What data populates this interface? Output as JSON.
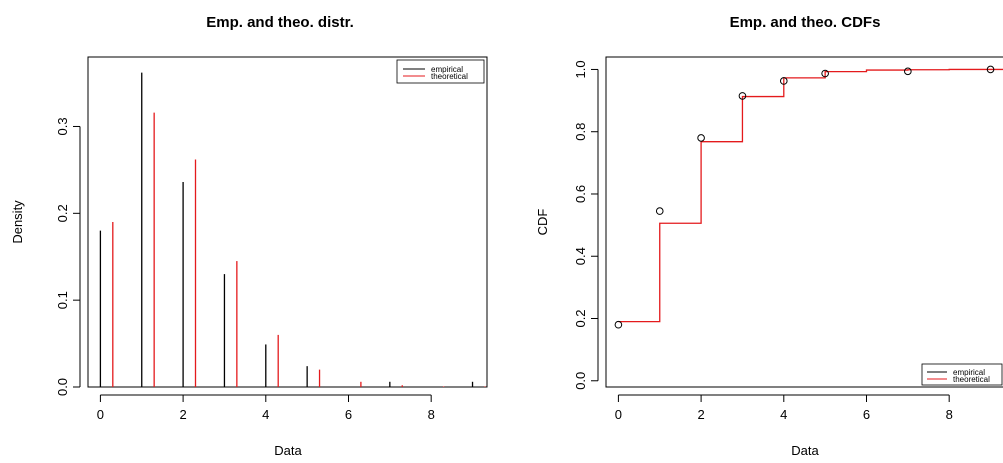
{
  "colors": {
    "empirical": "#000000",
    "theoretical": "#e41a1c"
  },
  "chart_data": [
    {
      "type": "bar",
      "title": "Emp. and theo. distr.",
      "xlabel": "Data",
      "ylabel": "Density",
      "xlim": [
        -0.3,
        9.35
      ],
      "ylim": [
        0,
        0.38
      ],
      "xticks": [
        0,
        2,
        4,
        6,
        8
      ],
      "xtick_labels": [
        "0",
        "2",
        "4",
        "6",
        "8"
      ],
      "yticks": [
        0.0,
        0.1,
        0.2,
        0.3
      ],
      "ytick_labels": [
        "0.0",
        "0.1",
        "0.2",
        "0.3"
      ],
      "legend_position": "top-right",
      "grid": false,
      "series": [
        {
          "name": "empirical",
          "x": [
            0,
            1,
            2,
            3,
            4,
            5,
            7,
            9
          ],
          "values": [
            0.18,
            0.362,
            0.236,
            0.13,
            0.049,
            0.024,
            0.006,
            0.006
          ]
        },
        {
          "name": "theoretical",
          "x": [
            0.3,
            1.3,
            2.3,
            3.3,
            4.3,
            5.3,
            6.3,
            7.3,
            8.3,
            9.3
          ],
          "values": [
            0.19,
            0.316,
            0.262,
            0.145,
            0.06,
            0.02,
            0.006,
            0.002,
            0.0005,
            0.0001
          ]
        }
      ]
    },
    {
      "type": "line",
      "title": "Emp. and theo. CDFs",
      "xlabel": "Data",
      "ylabel": "CDF",
      "xlim": [
        -0.3,
        9.35
      ],
      "ylim": [
        -0.02,
        1.04
      ],
      "xticks": [
        0,
        2,
        4,
        6,
        8
      ],
      "xtick_labels": [
        "0",
        "2",
        "4",
        "6",
        "8"
      ],
      "yticks": [
        0.0,
        0.2,
        0.4,
        0.6,
        0.8,
        1.0
      ],
      "ytick_labels": [
        "0.0",
        "0.2",
        "0.4",
        "0.6",
        "0.8",
        "1.0"
      ],
      "legend_position": "bottom-right",
      "grid": false,
      "series": [
        {
          "name": "empirical",
          "x": [
            0,
            1,
            2,
            3,
            4,
            5,
            7,
            9
          ],
          "values": [
            0.18,
            0.545,
            0.78,
            0.915,
            0.963,
            0.987,
            0.994,
            1.0
          ]
        },
        {
          "name": "theoretical",
          "x": [
            0,
            1,
            2,
            3,
            4,
            5,
            6,
            7,
            8,
            9
          ],
          "values": [
            0.19,
            0.506,
            0.768,
            0.913,
            0.973,
            0.993,
            0.998,
            0.999,
            1.0,
            1.0
          ]
        }
      ]
    }
  ]
}
